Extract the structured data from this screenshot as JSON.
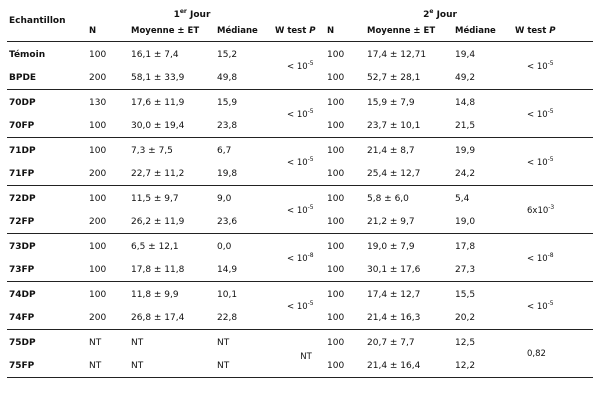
{
  "table": {
    "corner_label": "Echantillon",
    "day1_label": "1er Jour",
    "day2_label": "2e Jour",
    "columns": [
      "N",
      "Moyenne ± ET",
      "Médiane",
      "W test P"
    ],
    "groups": [
      {
        "rows": [
          {
            "name": "Témoin",
            "d1": [
              "100",
              "16,1 ± 7,4",
              "15,2"
            ],
            "d2": [
              "100",
              "17,4 ± 12,71",
              "19,4"
            ]
          },
          {
            "name": "BPDE",
            "d1": [
              "200",
              "58,1 ± 33,9",
              "49,8"
            ],
            "d2": [
              "100",
              "52,7 ± 28,1",
              "49,2"
            ]
          }
        ],
        "w1": "< 10-5",
        "w2": "< 10-5"
      },
      {
        "rows": [
          {
            "name": "70DP",
            "d1": [
              "130",
              "17,6 ± 11,9",
              "15,9"
            ],
            "d2": [
              "100",
              "15,9 ± 7,9",
              "14,8"
            ]
          },
          {
            "name": "70FP",
            "d1": [
              "100",
              "30,0 ± 19,4",
              "23,8"
            ],
            "d2": [
              "100",
              "23,7 ± 10,1",
              "21,5"
            ]
          }
        ],
        "w1": "< 10-5",
        "w2": "< 10-5"
      },
      {
        "rows": [
          {
            "name": "71DP",
            "d1": [
              "100",
              "7,3 ± 7,5",
              "6,7"
            ],
            "d2": [
              "100",
              "21,4 ± 8,7",
              "19,9"
            ]
          },
          {
            "name": "71FP",
            "d1": [
              "200",
              "22,7 ± 11,2",
              "19,8"
            ],
            "d2": [
              "100",
              "25,4 ± 12,7",
              "24,2"
            ]
          }
        ],
        "w1": "< 10-5",
        "w2": "< 10-5"
      },
      {
        "rows": [
          {
            "name": "72DP",
            "d1": [
              "100",
              "11,5 ± 9,7",
              "9,0"
            ],
            "d2": [
              "100",
              "5,8 ± 6,0",
              "5,4"
            ]
          },
          {
            "name": "72FP",
            "d1": [
              "200",
              "26,2 ± 11,9",
              "23,6"
            ],
            "d2": [
              "100",
              "21,2 ± 9,7",
              "19,0"
            ]
          }
        ],
        "w1": "< 10-5",
        "w2": "6x10-3"
      },
      {
        "rows": [
          {
            "name": "73DP",
            "d1": [
              "100",
              "6,5 ± 12,1",
              "0,0"
            ],
            "d2": [
              "100",
              "19,0 ± 7,9",
              "17,8"
            ]
          },
          {
            "name": "73FP",
            "d1": [
              "100",
              "17,8 ± 11,8",
              "14,9"
            ],
            "d2": [
              "100",
              "30,1 ± 17,6",
              "27,3"
            ]
          }
        ],
        "w1": "< 10-8",
        "w2": "< 10-8"
      },
      {
        "rows": [
          {
            "name": "74DP",
            "d1": [
              "100",
              "11,8 ± 9,9",
              "10,1"
            ],
            "d2": [
              "100",
              "17,4 ± 12,7",
              "15,5"
            ]
          },
          {
            "name": "74FP",
            "d1": [
              "200",
              "26,8 ± 17,4",
              "22,8"
            ],
            "d2": [
              "100",
              "21,4 ± 16,3",
              "20,2"
            ]
          }
        ],
        "w1": "< 10-5",
        "w2": "< 10-5"
      },
      {
        "rows": [
          {
            "name": "75DP",
            "d1": [
              "NT",
              "NT",
              "NT"
            ],
            "d2": [
              "100",
              "20,7 ± 7,7",
              "12,5"
            ]
          },
          {
            "name": "75FP",
            "d1": [
              "NT",
              "NT",
              "NT"
            ],
            "d2": [
              "100",
              "21,4 ± 16,4",
              "12,2"
            ]
          }
        ],
        "w1": "NT",
        "w2": "0,82"
      }
    ]
  }
}
